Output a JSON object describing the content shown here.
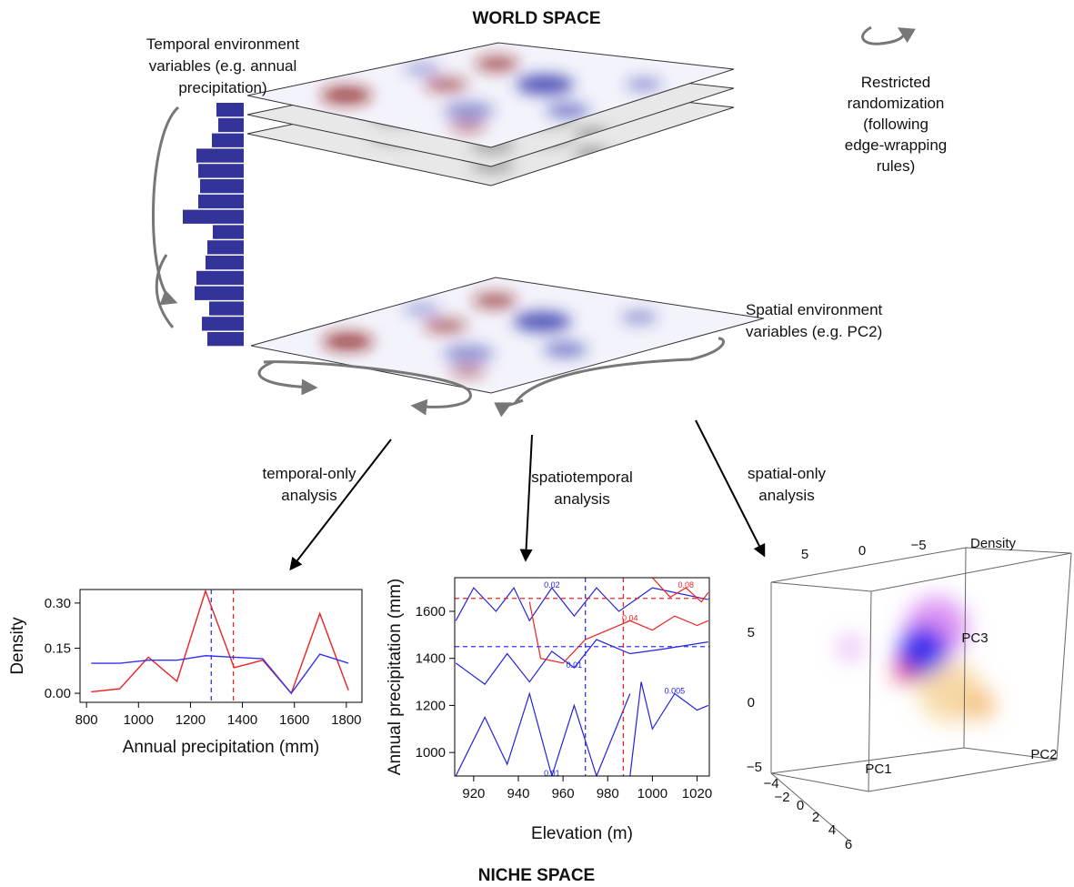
{
  "header": {
    "world_title": "WORLD SPACE",
    "niche_title": "NICHE SPACE"
  },
  "labels": {
    "temporal_vars": [
      "Temporal environment",
      "variables (e.g. annual",
      "precipitation)"
    ],
    "randomization": [
      "Restricted",
      "randomization",
      "(following",
      "edge-wrapping",
      "rules)"
    ],
    "spatial_vars": [
      "Spatial environment",
      "variables (e.g. PC2)"
    ],
    "temporal_analysis": [
      "temporal-only",
      "analysis"
    ],
    "spatiotemporal_analysis": [
      "spatiotemporal",
      "analysis"
    ],
    "spatial_analysis": [
      "spatial-only",
      "analysis"
    ]
  },
  "histogram": {
    "values": [
      30,
      28,
      35,
      52,
      50,
      48,
      50,
      67,
      34,
      40,
      42,
      52,
      54,
      38,
      46,
      40
    ],
    "color": "#33339a"
  },
  "density_plot": {
    "type": "line",
    "x_label": "Annual precipitation (mm)",
    "y_label": "Density",
    "x": [
      818,
      928,
      1038,
      1148,
      1258,
      1368,
      1478,
      1588,
      1698,
      1808
    ],
    "series": [
      {
        "color": "#ee2222",
        "values": [
          0.005,
          0.015,
          0.12,
          0.04,
          0.34,
          0.085,
          0.11,
          0.0,
          0.265,
          0.01
        ]
      },
      {
        "color": "#3333ee",
        "values": [
          0.1,
          0.1,
          0.11,
          0.11,
          0.125,
          0.12,
          0.115,
          0.0,
          0.13,
          0.1
        ]
      }
    ],
    "xlim": [
      775,
      1860
    ],
    "ylim": [
      -0.03,
      0.345
    ],
    "xticks": [
      800,
      1000,
      1200,
      1400,
      1600,
      1800
    ],
    "yticks": [
      {
        "value": 0,
        "label": "0.00"
      },
      0.15,
      {
        "value": 0.3,
        "label": "0.30"
      }
    ],
    "reference_lines": [
      {
        "value": 1280,
        "color": "#3333ee"
      },
      {
        "value": 1365,
        "color": "#ee2222"
      }
    ]
  },
  "contour_plot": {
    "type": "contour",
    "x_label": "Elevation (m)",
    "y_label": "Annual precipitation (mm)",
    "xlim": [
      911.5,
      1025.5
    ],
    "ylim": [
      900,
      1743
    ],
    "xticks": [
      920,
      940,
      960,
      980,
      1000,
      1020
    ],
    "yticks": [
      1000,
      1200,
      1400,
      1600
    ],
    "reference_lines_x": [
      {
        "value": 970,
        "color": "#3333ee"
      },
      {
        "value": 987,
        "color": "#ee2222"
      }
    ],
    "reference_lines_y": [
      {
        "value": 1450,
        "color": "#3333ee"
      },
      {
        "value": 1655,
        "color": "#ee2222"
      }
    ],
    "contours": [
      {
        "level": 0.02,
        "color": "#2222dd",
        "x": [
          912,
          920,
          930,
          938,
          945,
          955,
          965,
          975,
          985,
          1000,
          1025
        ],
        "y": [
          1560,
          1700,
          1600,
          1700,
          1560,
          1700,
          1580,
          1700,
          1600,
          1700,
          1650
        ]
      },
      {
        "level": 0.01,
        "color": "#2222dd",
        "x": [
          912,
          925,
          935,
          945,
          955,
          965,
          975,
          990,
          1005,
          1025
        ],
        "y": [
          1380,
          1290,
          1420,
          1300,
          1430,
          1360,
          1480,
          1420,
          1440,
          1470
        ]
      },
      {
        "level": 0.01,
        "color": "#2222dd",
        "x": [
          912,
          925,
          935,
          945,
          955,
          965,
          975,
          990
        ],
        "y": [
          900,
          1150,
          950,
          1250,
          900,
          1200,
          900,
          1250
        ]
      },
      {
        "level": 0.005,
        "color": "#2222dd",
        "x": [
          990,
          995,
          1000,
          1010,
          1020,
          1025
        ],
        "y": [
          900,
          1300,
          1100,
          1250,
          1180,
          1200
        ]
      },
      {
        "level": 0.04,
        "color": "#ee2222",
        "x": [
          945,
          950,
          960,
          970,
          980,
          990,
          1000,
          1010,
          1020,
          1025
        ],
        "y": [
          1640,
          1400,
          1380,
          1480,
          1520,
          1560,
          1520,
          1580,
          1540,
          1560
        ]
      },
      {
        "level": 0.08,
        "color": "#ee2222",
        "x": [
          1000,
          1008,
          1015,
          1022,
          1025
        ],
        "y": [
          1743,
          1660,
          1700,
          1640,
          1680
        ]
      }
    ]
  },
  "plot3d": {
    "axis_labels": {
      "pc1": "PC1",
      "pc2": "PC2",
      "pc3": "PC3",
      "density": "Density"
    },
    "top_ticks": [
      "5",
      "0",
      "−5"
    ],
    "left_ticks": [
      "5",
      "0",
      "−5"
    ],
    "bottom_ticks": [
      "−4",
      "−2",
      "0",
      "2",
      "4",
      "6"
    ]
  }
}
